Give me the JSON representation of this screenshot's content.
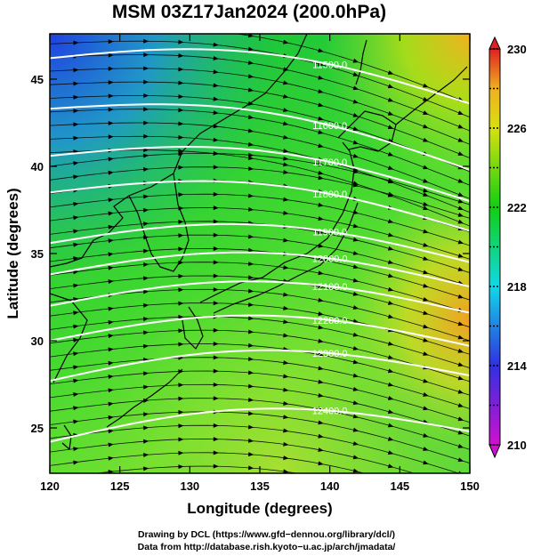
{
  "title": "MSM 03Z17Jan2024 (200.0hPa)",
  "x_axis": {
    "label": "Longitude (degrees)",
    "range": [
      120,
      150
    ],
    "ticks": [
      120,
      125,
      130,
      135,
      140,
      145,
      150
    ]
  },
  "y_axis": {
    "label": "Latitude  (degrees)",
    "range": [
      22.4,
      47.6
    ],
    "ticks": [
      25,
      30,
      35,
      40,
      45
    ]
  },
  "colorbar": {
    "range": [
      210,
      230
    ],
    "labels": [
      210,
      214,
      218,
      222,
      226,
      230
    ],
    "colors": [
      "#d010d0",
      "#3030e0",
      "#10d8e8",
      "#10d010",
      "#d8e010",
      "#f0b020",
      "#e02020"
    ]
  },
  "contours": {
    "color": "#ffffff",
    "lines": [
      {
        "value": 11500,
        "label": "11500.0",
        "lat_west": 46.2,
        "lat_east": 43.6
      },
      {
        "value": 11600,
        "label": "11600.0",
        "lat_west": 43.3,
        "lat_east": 39.8
      },
      {
        "value": 11700,
        "label": "11700.0",
        "lat_west": 40.6,
        "lat_east": 38.0
      },
      {
        "value": 11800,
        "label": "11800.0",
        "lat_west": 38.5,
        "lat_east": 36.3
      },
      {
        "value": 11900,
        "label": "11900.0",
        "lat_west": 35.6,
        "lat_east": 34.5
      },
      {
        "value": 12000,
        "label": "12000.0",
        "lat_west": 33.8,
        "lat_east": 33.1
      },
      {
        "value": 12100,
        "label": "12100.0",
        "lat_west": 32.0,
        "lat_east": 31.6
      },
      {
        "value": 12200,
        "label": "12200.0",
        "lat_west": 30.0,
        "lat_east": 29.7
      },
      {
        "value": 12300,
        "label": "12300.0",
        "lat_west": 27.7,
        "lat_east": 28.0
      },
      {
        "value": 12400,
        "label": "12400.0",
        "lat_west": 24.2,
        "lat_east": 24.8
      }
    ]
  },
  "credits": [
    "Drawing by DCL (https://www.gfd−dennou.org/library/dcl/)",
    "Data from http://database.rish.kyoto−u.ac.jp/arch/jmadata/"
  ]
}
